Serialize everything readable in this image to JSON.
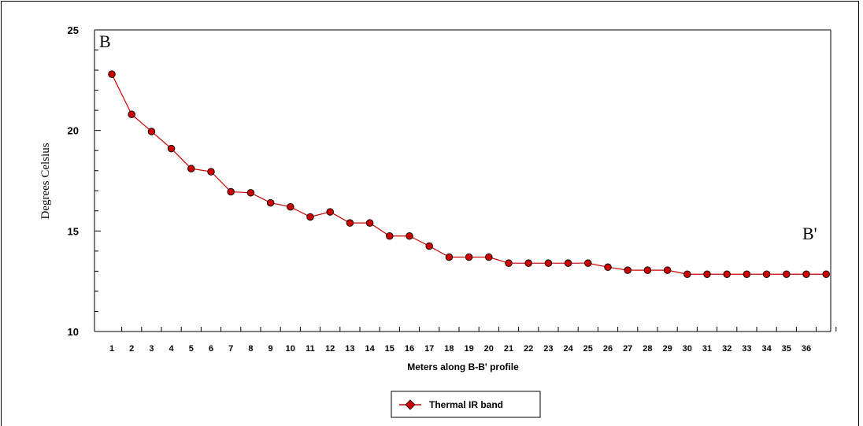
{
  "chart_data": {
    "type": "line",
    "ylabel": "Degrees Celsius",
    "xlabel": "Meters along B-B' profile",
    "ylim": [
      10,
      25
    ],
    "yticks": [
      10,
      15,
      20,
      25
    ],
    "categories": [
      "1",
      "2",
      "3",
      "4",
      "5",
      "6",
      "7",
      "8",
      "9",
      "10",
      "11",
      "12",
      "13",
      "14",
      "15",
      "16",
      "17",
      "18",
      "19",
      "20",
      "21",
      "22",
      "23",
      "24",
      "25",
      "26",
      "27",
      "28",
      "29",
      "30",
      "31",
      "32",
      "33",
      "34",
      "35",
      "36",
      ""
    ],
    "series": [
      {
        "name": "Thermal IR band",
        "color": "#cc0000",
        "values": [
          22.8,
          20.8,
          19.95,
          19.1,
          18.1,
          17.95,
          16.95,
          16.9,
          16.4,
          16.2,
          15.7,
          15.95,
          15.4,
          15.4,
          14.75,
          14.75,
          14.25,
          13.7,
          13.7,
          13.7,
          13.4,
          13.4,
          13.4,
          13.4,
          13.4,
          13.2,
          13.05,
          13.05,
          13.05,
          12.85,
          12.85,
          12.85,
          12.85,
          12.85,
          12.85,
          12.85,
          12.85
        ]
      }
    ],
    "annotations": {
      "start": "B",
      "end": "B'"
    },
    "grid": false,
    "legend": "bottom-center"
  }
}
